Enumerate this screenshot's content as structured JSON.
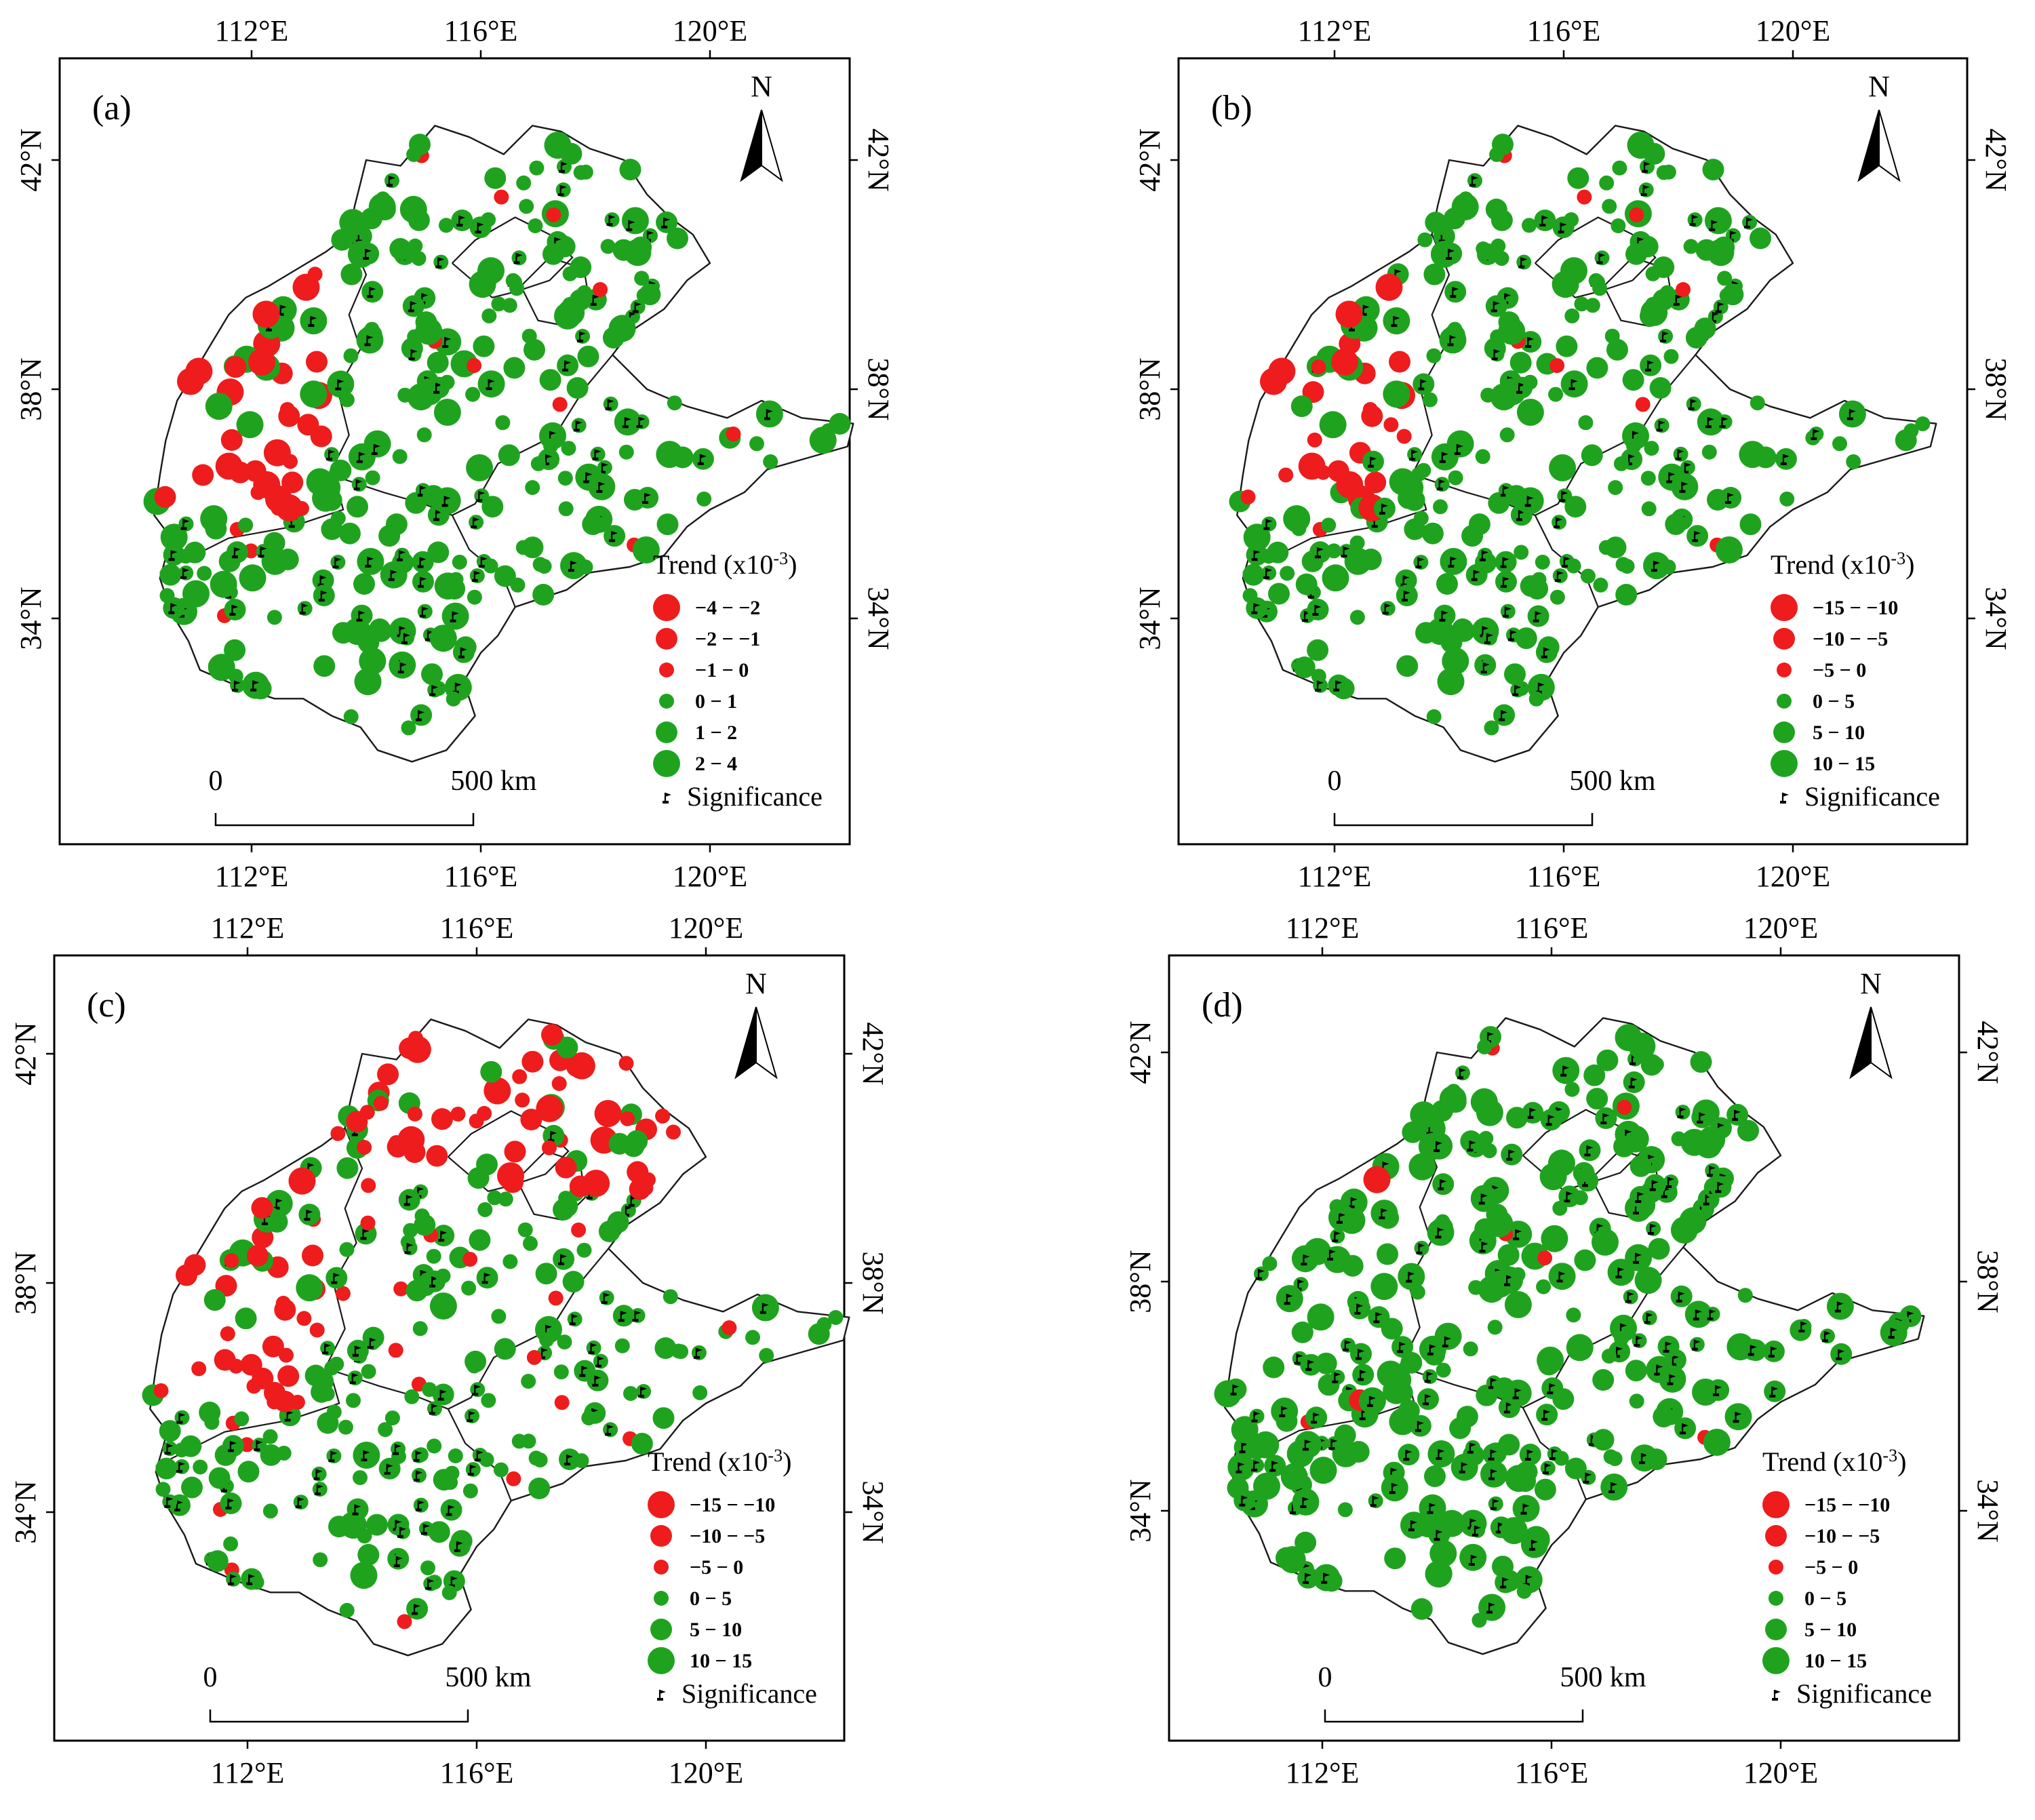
{
  "panels": [
    {
      "id": "a",
      "label": "(a)",
      "legend_title": "Trend (x10",
      "legend_exponent": "-3",
      "legend_close": ")",
      "classes": [
        {
          "label": "−4 − −2",
          "color": "#ee1c1c"
        },
        {
          "label": "−2 − −1",
          "color": "#ee1c1c"
        },
        {
          "label": "−1 − 0",
          "color": "#ee1c1c"
        },
        {
          "label": "0 − 1",
          "color": "#1fa31f"
        },
        {
          "label": "1 − 2",
          "color": "#1fa31f"
        },
        {
          "label": "2 − 4",
          "color": "#1fa31f"
        }
      ],
      "significance_label": "Significance"
    },
    {
      "id": "b",
      "label": "(b)",
      "legend_title": "Trend (x10",
      "legend_exponent": "-3",
      "legend_close": ")",
      "classes": [
        {
          "label": "−15 − −10",
          "color": "#ee1c1c"
        },
        {
          "label": "−10 − −5",
          "color": "#ee1c1c"
        },
        {
          "label": "−5 − 0",
          "color": "#ee1c1c"
        },
        {
          "label": "0 − 5",
          "color": "#1fa31f"
        },
        {
          "label": "5 − 10",
          "color": "#1fa31f"
        },
        {
          "label": "10 − 15",
          "color": "#1fa31f"
        }
      ],
      "significance_label": "Significance"
    },
    {
      "id": "c",
      "label": "(c)",
      "legend_title": "Trend (x10",
      "legend_exponent": "-3",
      "legend_close": ")",
      "classes": [
        {
          "label": "−15 − −10",
          "color": "#ee1c1c"
        },
        {
          "label": "−10 − −5",
          "color": "#ee1c1c"
        },
        {
          "label": "−5 − 0",
          "color": "#ee1c1c"
        },
        {
          "label": "0 − 5",
          "color": "#1fa31f"
        },
        {
          "label": "5 − 10",
          "color": "#1fa31f"
        },
        {
          "label": "10 − 15",
          "color": "#1fa31f"
        }
      ],
      "significance_label": "Significance"
    },
    {
      "id": "d",
      "label": "(d)",
      "legend_title": "Trend (x10",
      "legend_exponent": "-3",
      "legend_close": ")",
      "classes": [
        {
          "label": "−15 − −10",
          "color": "#ee1c1c"
        },
        {
          "label": "−10 − −5",
          "color": "#ee1c1c"
        },
        {
          "label": "−5 − 0",
          "color": "#ee1c1c"
        },
        {
          "label": "0 − 5",
          "color": "#1fa31f"
        },
        {
          "label": "5 − 10",
          "color": "#1fa31f"
        },
        {
          "label": "10 − 15",
          "color": "#1fa31f"
        }
      ],
      "significance_label": "Significance"
    }
  ],
  "axes": {
    "lon_ticks": [
      "112°E",
      "116°E",
      "120°E"
    ],
    "lat_ticks": [
      "42°N",
      "38°N",
      "34°N"
    ]
  },
  "north_arrow_label": "N",
  "scale_bar": {
    "start": "0",
    "end": "500 km"
  },
  "colors": {
    "negative": "#ee1c1c",
    "positive": "#1fa31f",
    "outline": "#1a1a1a"
  }
}
